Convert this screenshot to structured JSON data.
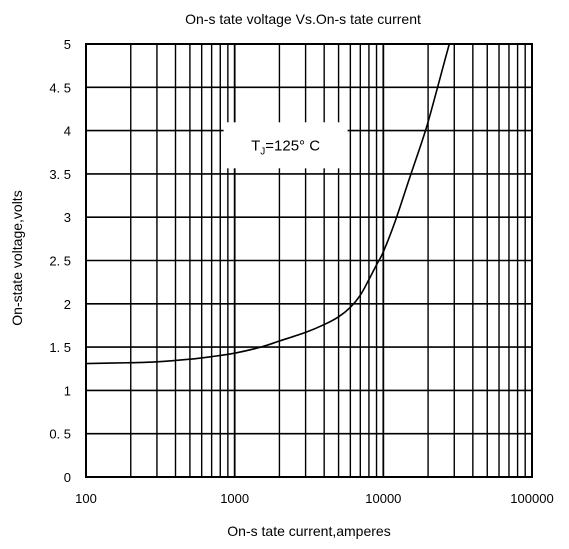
{
  "chart_data": {
    "type": "line",
    "title": "On-s tate voltage  Vs.On-s tate current",
    "xlabel": "On-s tate current,amperes",
    "ylabel": "On-state voltage,volts",
    "xscale": "log",
    "xlim": [
      100,
      100000
    ],
    "ylim": [
      0,
      5
    ],
    "grid": true,
    "x_ticks": [
      100,
      1000,
      10000,
      100000
    ],
    "x_tick_labels": [
      "100",
      "1000",
      "10000",
      "100000"
    ],
    "y_ticks": [
      0,
      0.5,
      1,
      1.5,
      2,
      2.5,
      3,
      3.5,
      4,
      4.5,
      5
    ],
    "y_tick_labels": [
      "0",
      "0. 5",
      "1",
      "1. 5",
      "2",
      "2. 5",
      "3",
      "3. 5",
      "4",
      "4. 5",
      "5"
    ],
    "annotation": {
      "prefix": "T",
      "subscript": "J",
      "suffix": "=125° C",
      "x": 2200,
      "y": 3.83
    },
    "series": [
      {
        "x": [
          100,
          200,
          300,
          500,
          700,
          1000,
          1500,
          2000,
          3000,
          4000,
          5000,
          6000,
          7000,
          8000,
          9000,
          10000,
          12000,
          15000,
          18000,
          20000,
          23000,
          26000,
          28000,
          30000
        ],
        "y": [
          1.31,
          1.32,
          1.33,
          1.36,
          1.39,
          1.43,
          1.5,
          1.57,
          1.67,
          1.76,
          1.85,
          1.96,
          2.1,
          2.28,
          2.45,
          2.6,
          2.95,
          3.45,
          3.85,
          4.1,
          4.48,
          4.82,
          5.02,
          5.2
        ]
      }
    ],
    "colors": {
      "line": "#000000",
      "grid": "#000000",
      "background": "#ffffff"
    }
  }
}
